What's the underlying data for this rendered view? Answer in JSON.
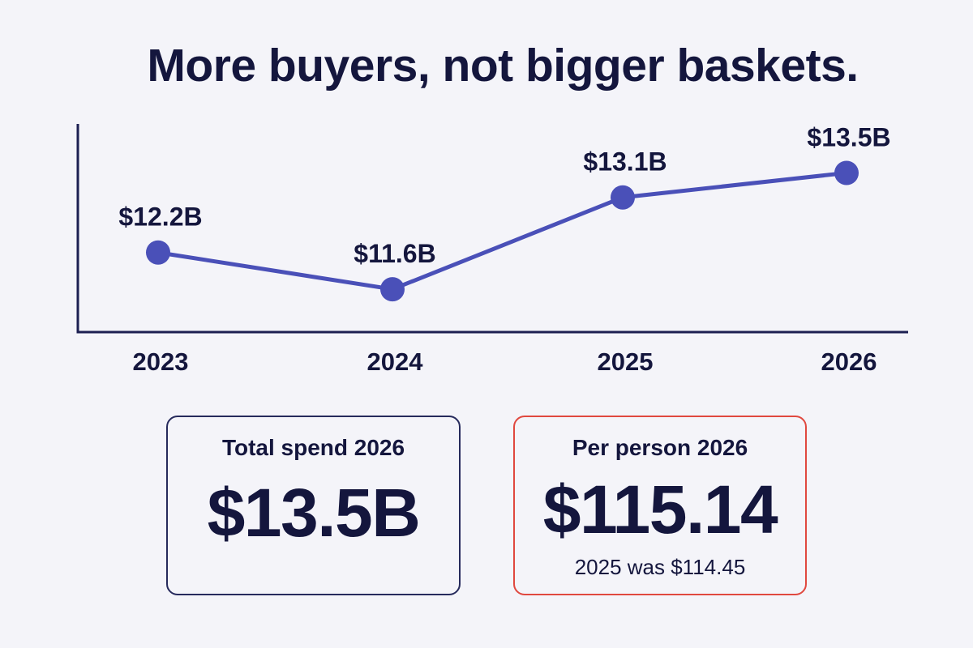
{
  "headline": "More buyers, not bigger baskets.",
  "chart_data": {
    "type": "line",
    "categories": [
      "2023",
      "2024",
      "2025",
      "2026"
    ],
    "values": [
      12.2,
      11.6,
      13.1,
      13.5
    ],
    "data_labels": [
      "$12.2B",
      "$11.6B",
      "$13.1B",
      "$13.5B"
    ],
    "title": "",
    "xlabel": "",
    "ylabel": "",
    "ylim": [
      10.9,
      14.3
    ],
    "unit": "$B",
    "grid": false,
    "legend": "none",
    "colors": {
      "line": "#4a50b8",
      "axis": "#1c1f52",
      "text": "#14163d"
    }
  },
  "cards": {
    "total": {
      "label": "Total spend 2026",
      "value": "$13.5B",
      "border_color": "#262a5c"
    },
    "per_person": {
      "label": "Per person 2026",
      "value": "$115.14",
      "note": "2025 was $114.45",
      "border_color": "#e0483f"
    }
  }
}
